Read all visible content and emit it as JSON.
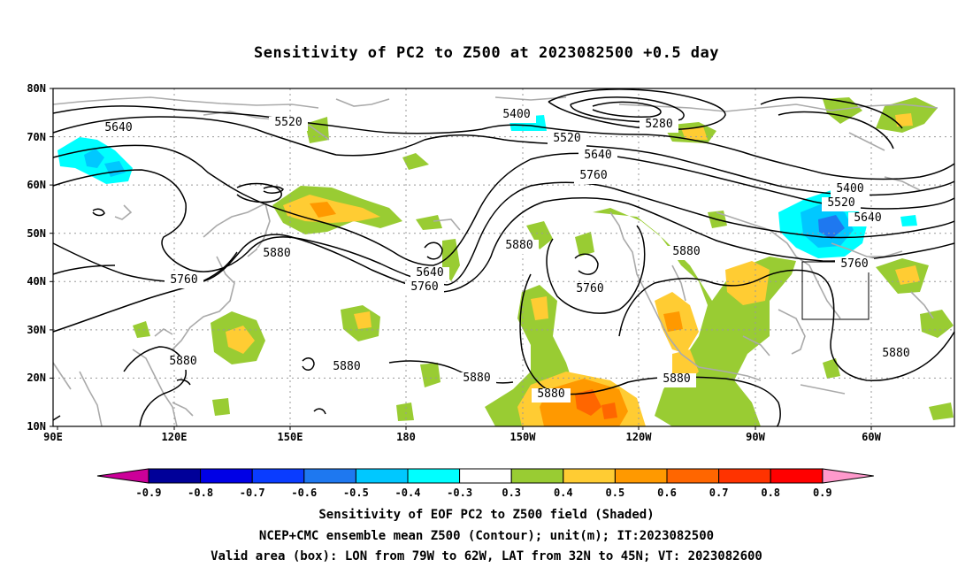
{
  "title": "Sensitivity of PC2 to Z500 at 2023082500 +0.5 day",
  "lat_labels": [
    "80N",
    "70N",
    "60N",
    "50N",
    "40N",
    "30N",
    "20N",
    "10N"
  ],
  "lon_labels": [
    "90E",
    "120E",
    "150E",
    "180",
    "150W",
    "120W",
    "90W",
    "60W"
  ],
  "contour_labels": [
    {
      "text": "5640"
    },
    {
      "text": "5520"
    },
    {
      "text": "5400"
    },
    {
      "text": "5280"
    },
    {
      "text": "5520"
    },
    {
      "text": "5640"
    },
    {
      "text": "5760"
    },
    {
      "text": "5400"
    },
    {
      "text": "5520"
    },
    {
      "text": "5640"
    },
    {
      "text": "5760"
    },
    {
      "text": "5880"
    },
    {
      "text": "5880"
    },
    {
      "text": "5760"
    },
    {
      "text": "5880"
    },
    {
      "text": "5760"
    },
    {
      "text": "5640"
    },
    {
      "text": "5760"
    },
    {
      "text": "5880"
    },
    {
      "text": "5880"
    },
    {
      "text": "5880"
    },
    {
      "text": "5880"
    },
    {
      "text": "5880"
    },
    {
      "text": "5880"
    }
  ],
  "colorbar": {
    "labels": [
      "-0.9",
      "-0.8",
      "-0.7",
      "-0.6",
      "-0.5",
      "-0.4",
      "-0.3",
      "0.3",
      "0.4",
      "0.5",
      "0.6",
      "0.7",
      "0.8",
      "0.9"
    ],
    "colors": [
      "#000099",
      "#0000e6",
      "#0a3cff",
      "#1e78f0",
      "#00c8ff",
      "#00ffff",
      "#ffffff",
      "#99cc33",
      "#ffcc33",
      "#ff9900",
      "#ff6600",
      "#ff3300",
      "#ff0000"
    ],
    "low_tip_color": "#cc0099",
    "high_tip_color": "#ff99cc"
  },
  "captions": {
    "line1": "Sensitivity of EOF PC2 to Z500 field (Shaded)",
    "line2": "NCEP+CMC ensemble mean Z500 (Contour); unit(m); IT:2023082500",
    "line3": "Valid area (box): LON from 79W to 62W, LAT from 32N to 45N; VT: 2023082600"
  }
}
